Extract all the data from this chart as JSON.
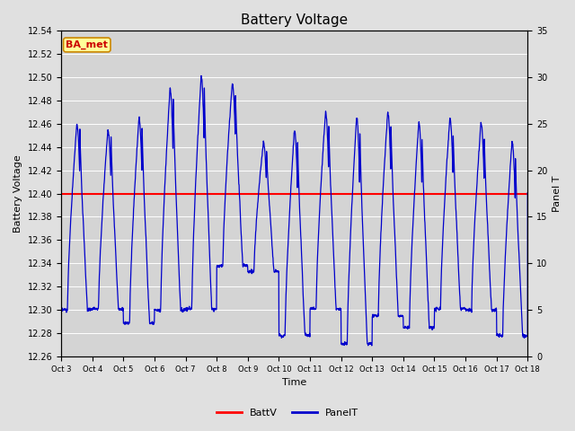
{
  "title": "Battery Voltage",
  "xlabel": "Time",
  "ylabel_left": "Battery Voltage",
  "ylabel_right": "Panel T",
  "ylim_left": [
    12.26,
    12.54
  ],
  "ylim_right": [
    0,
    35
  ],
  "yticks_left": [
    12.26,
    12.28,
    12.3,
    12.32,
    12.34,
    12.36,
    12.38,
    12.4,
    12.42,
    12.44,
    12.46,
    12.48,
    12.5,
    12.52,
    12.54
  ],
  "yticks_right": [
    0,
    5,
    10,
    15,
    20,
    25,
    30,
    35
  ],
  "xtick_labels": [
    "Oct 3",
    "Oct 4",
    "Oct 5",
    "Oct 6",
    "Oct 7",
    "Oct 8",
    "Oct 9",
    "Oct 10",
    "Oct 11",
    "Oct 12",
    "Oct 13",
    "Oct 14",
    "Oct 15",
    "Oct 16",
    "Oct 17",
    "Oct 18"
  ],
  "battv_value": 12.4,
  "battv_color": "#ff0000",
  "panel_color": "#0000cc",
  "bg_color": "#e0e0e0",
  "plot_bg_color": "#d4d4d4",
  "annotation_text": "BA_met",
  "annotation_bg": "#ffff99",
  "annotation_border": "#cc8800",
  "annotation_fg": "#cc0000",
  "legend_battv": "BattV",
  "legend_panelt": "PanelT",
  "title_fontsize": 11,
  "axis_label_fontsize": 8,
  "tick_fontsize": 7
}
